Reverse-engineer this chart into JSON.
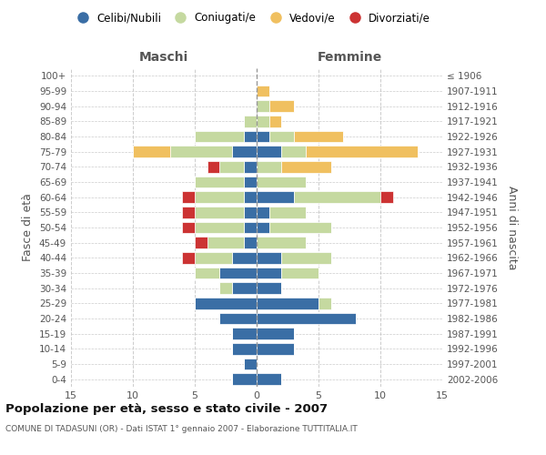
{
  "age_groups": [
    "0-4",
    "5-9",
    "10-14",
    "15-19",
    "20-24",
    "25-29",
    "30-34",
    "35-39",
    "40-44",
    "45-49",
    "50-54",
    "55-59",
    "60-64",
    "65-69",
    "70-74",
    "75-79",
    "80-84",
    "85-89",
    "90-94",
    "95-99",
    "100+"
  ],
  "birth_years": [
    "2002-2006",
    "1997-2001",
    "1992-1996",
    "1987-1991",
    "1982-1986",
    "1977-1981",
    "1972-1976",
    "1967-1971",
    "1962-1966",
    "1957-1961",
    "1952-1956",
    "1947-1951",
    "1942-1946",
    "1937-1941",
    "1932-1936",
    "1927-1931",
    "1922-1926",
    "1917-1921",
    "1912-1916",
    "1907-1911",
    "≤ 1906"
  ],
  "male": {
    "celibi": [
      2,
      1,
      2,
      2,
      3,
      5,
      2,
      3,
      2,
      1,
      1,
      1,
      1,
      1,
      1,
      2,
      1,
      0,
      0,
      0,
      0
    ],
    "coniugati": [
      0,
      0,
      0,
      0,
      0,
      0,
      1,
      2,
      3,
      3,
      4,
      4,
      4,
      4,
      2,
      5,
      4,
      1,
      0,
      0,
      0
    ],
    "vedovi": [
      0,
      0,
      0,
      0,
      0,
      0,
      0,
      0,
      0,
      0,
      0,
      0,
      0,
      0,
      0,
      3,
      0,
      0,
      0,
      0,
      0
    ],
    "divorziati": [
      0,
      0,
      0,
      0,
      0,
      0,
      0,
      0,
      1,
      1,
      1,
      1,
      1,
      0,
      1,
      0,
      0,
      0,
      0,
      0,
      0
    ]
  },
  "female": {
    "celibi": [
      2,
      0,
      3,
      3,
      8,
      5,
      2,
      2,
      2,
      0,
      1,
      1,
      3,
      0,
      0,
      2,
      1,
      0,
      0,
      0,
      0
    ],
    "coniugati": [
      0,
      0,
      0,
      0,
      0,
      1,
      0,
      3,
      4,
      4,
      5,
      3,
      7,
      4,
      2,
      2,
      2,
      1,
      1,
      0,
      0
    ],
    "vedovi": [
      0,
      0,
      0,
      0,
      0,
      0,
      0,
      0,
      0,
      0,
      0,
      0,
      0,
      0,
      4,
      9,
      4,
      1,
      2,
      1,
      0
    ],
    "divorziati": [
      0,
      0,
      0,
      0,
      0,
      0,
      0,
      0,
      0,
      0,
      0,
      0,
      1,
      0,
      0,
      0,
      0,
      0,
      0,
      0,
      0
    ]
  },
  "colors": {
    "celibi": "#3a6ea5",
    "coniugati": "#c5d9a0",
    "vedovi": "#f0c060",
    "divorziati": "#cc3333"
  },
  "legend_labels": [
    "Celibi/Nubili",
    "Coniugati/e",
    "Vedovi/e",
    "Divorziati/e"
  ],
  "title": "Popolazione per età, sesso e stato civile - 2007",
  "subtitle": "COMUNE DI TADASUNI (OR) - Dati ISTAT 1° gennaio 2007 - Elaborazione TUTTITALIA.IT",
  "ylabel_left": "Fasce di età",
  "ylabel_right": "Anni di nascita",
  "xlabel_maschi": "Maschi",
  "xlabel_femmine": "Femmine",
  "xlim": 15,
  "background_color": "#ffffff",
  "grid_color": "#cccccc"
}
